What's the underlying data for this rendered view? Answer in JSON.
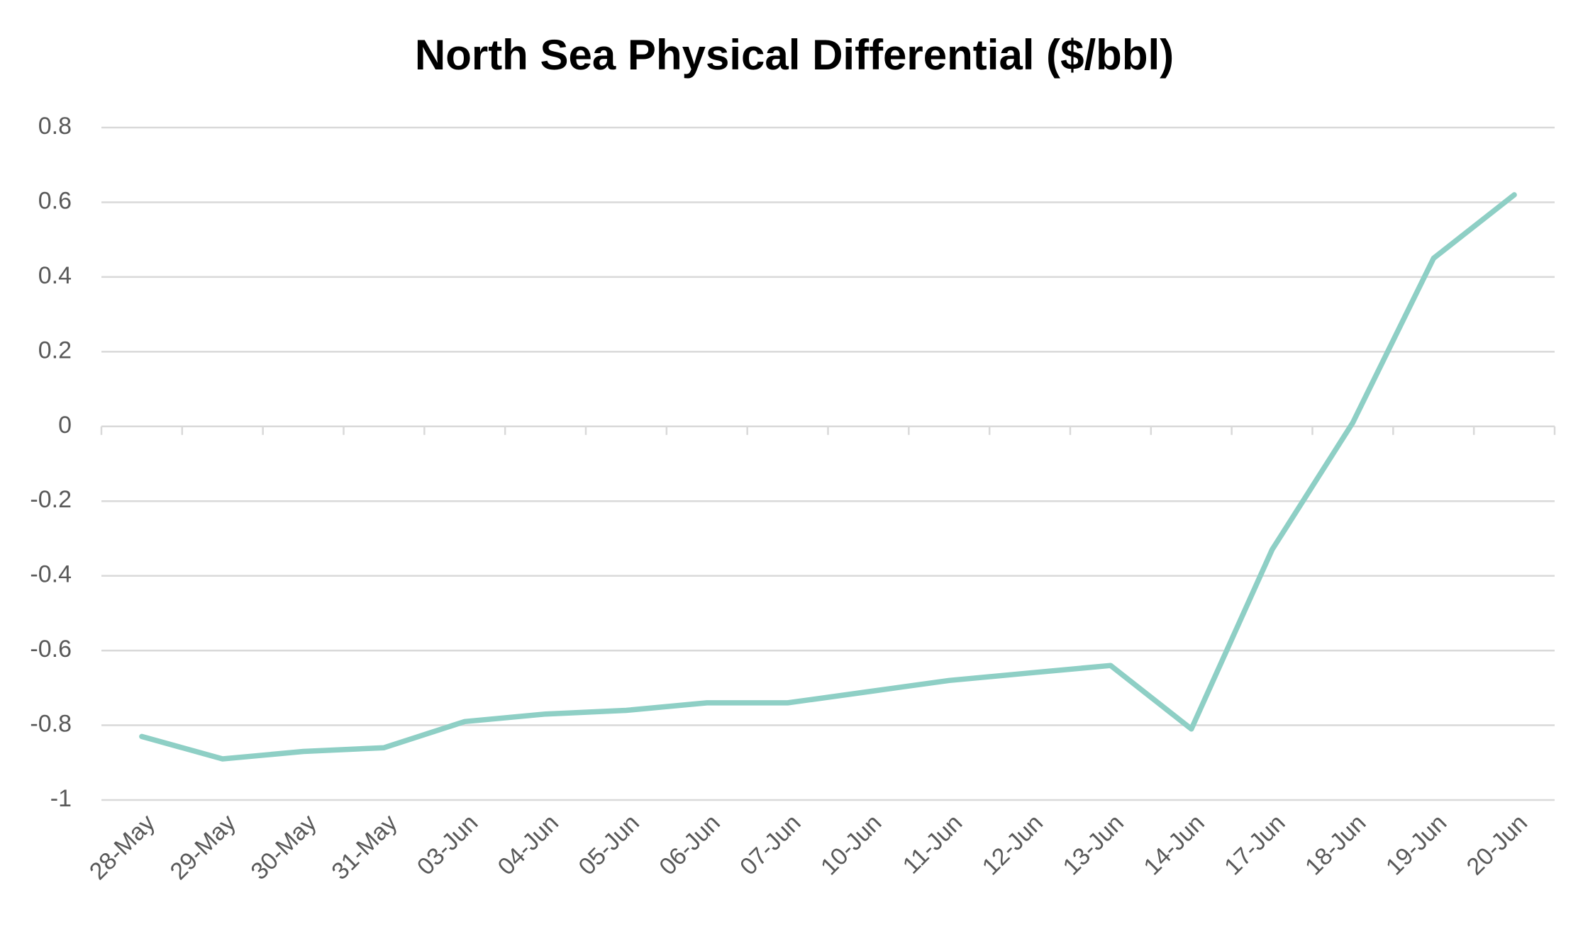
{
  "chart_data": {
    "type": "line",
    "title": "North Sea Physical Differential ($/bbl)",
    "categories": [
      "28-May",
      "29-May",
      "30-May",
      "31-May",
      "03-Jun",
      "04-Jun",
      "05-Jun",
      "06-Jun",
      "07-Jun",
      "10-Jun",
      "11-Jun",
      "12-Jun",
      "13-Jun",
      "14-Jun",
      "17-Jun",
      "18-Jun",
      "19-Jun",
      "20-Jun"
    ],
    "values": [
      -0.83,
      -0.89,
      -0.87,
      -0.86,
      -0.79,
      -0.77,
      -0.76,
      -0.74,
      -0.74,
      -0.71,
      -0.68,
      -0.66,
      -0.64,
      -0.81,
      -0.33,
      0.01,
      0.45,
      0.62
    ],
    "color": "#8ecfc5",
    "ylim": [
      -1,
      0.8
    ],
    "yticks": [
      -1,
      -0.8,
      -0.6,
      -0.4,
      -0.2,
      0,
      0.2,
      0.4,
      0.6,
      0.8
    ],
    "grid": true
  }
}
